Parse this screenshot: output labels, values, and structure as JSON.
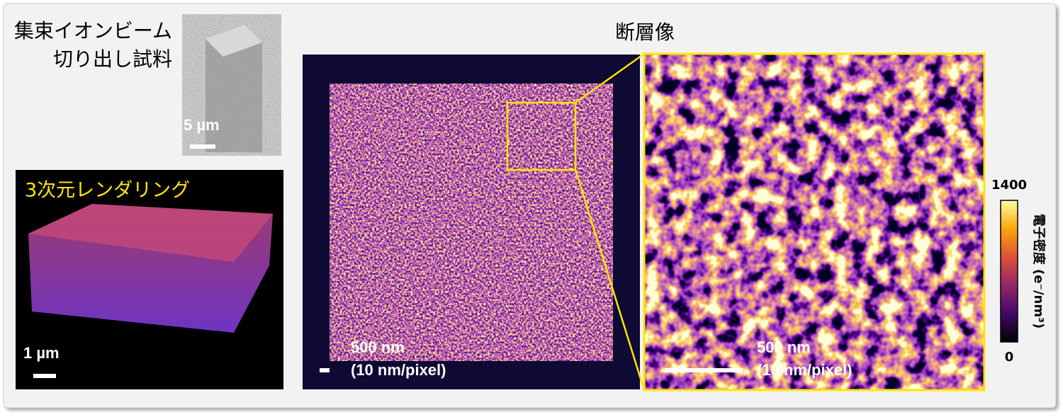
{
  "fib_sample": {
    "title_lines": [
      "集束イオンビーム",
      "切り出し試料"
    ],
    "scale_bar": "5 µm"
  },
  "rendering": {
    "title": "3次元レンダリング",
    "scale_bar": "1 µm"
  },
  "tomogram": {
    "title": "断層像",
    "overview": {
      "scale_bar": "500 nm",
      "resolution": "(10 nm/pixel)"
    },
    "zoom": {
      "scale_bar": "500 nm",
      "resolution": "(10 nm/pixel)"
    }
  },
  "colorbar": {
    "label": "電子密度 (e⁻/nm³)",
    "lim": [
      0,
      1400
    ],
    "ticks": [
      0,
      1400
    ]
  }
}
